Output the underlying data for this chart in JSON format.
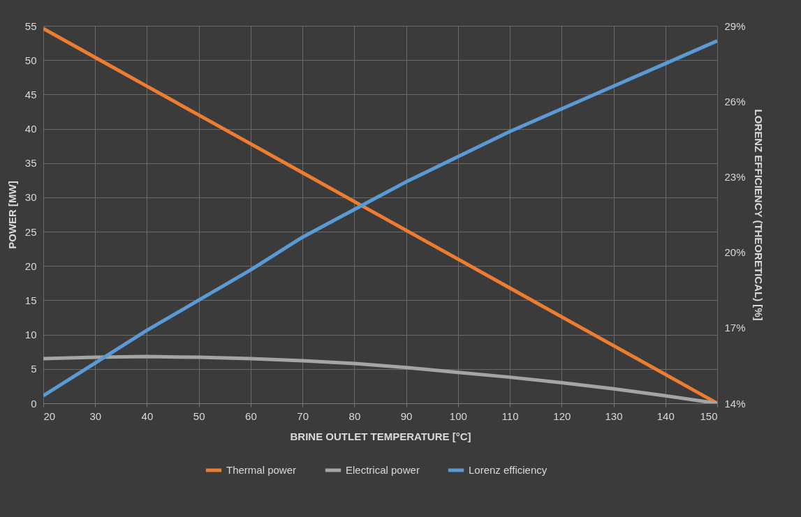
{
  "chart_data": {
    "type": "line",
    "xlabel": "BRINE OUTLET TEMPERATURE [°C]",
    "ylabel": "POWER [MW]",
    "y2label": "LORENZ EFFICIENCY (THEORETICAL) [%]",
    "x": [
      20,
      30,
      40,
      50,
      60,
      70,
      80,
      90,
      100,
      110,
      120,
      130,
      140,
      150
    ],
    "series": [
      {
        "name": "Thermal power",
        "color": "#ed7d31",
        "values": [
          54.6,
          50.4,
          46.2,
          42.0,
          37.8,
          33.6,
          29.4,
          25.2,
          21.0,
          16.8,
          12.6,
          8.4,
          4.2,
          0
        ]
      },
      {
        "name": "Electrical power",
        "color": "#a5a5a5",
        "values": [
          6.5,
          6.7,
          6.8,
          6.7,
          6.5,
          6.2,
          5.8,
          5.2,
          4.5,
          3.8,
          3.0,
          2.1,
          1.1,
          0
        ]
      },
      {
        "name": "Lorenz efficiency",
        "color": "#5b9bd5",
        "axis": "y2",
        "values": [
          14.3,
          15.6,
          16.9,
          18.1,
          19.3,
          20.6,
          21.7,
          22.8,
          23.8,
          24.8,
          25.7,
          26.6,
          27.5,
          28.4
        ]
      }
    ],
    "xlim": [
      20,
      150
    ],
    "xticks": [
      20,
      30,
      40,
      50,
      60,
      70,
      80,
      90,
      100,
      110,
      120,
      130,
      140,
      150
    ],
    "ylim": [
      0,
      55
    ],
    "yticks": [
      0,
      5,
      10,
      15,
      20,
      25,
      30,
      35,
      40,
      45,
      50,
      55
    ],
    "y2lim": [
      14,
      29
    ],
    "y2ticks": [
      {
        "value": 14,
        "label": "14%"
      },
      {
        "value": 17,
        "label": "17%"
      },
      {
        "value": 20,
        "label": "20%"
      },
      {
        "value": 23,
        "label": "23%"
      },
      {
        "value": 26,
        "label": "26%"
      },
      {
        "value": 29,
        "label": "29%"
      }
    ],
    "grid": true,
    "legend": "bottom",
    "marker": "none",
    "line_style": "solid"
  }
}
